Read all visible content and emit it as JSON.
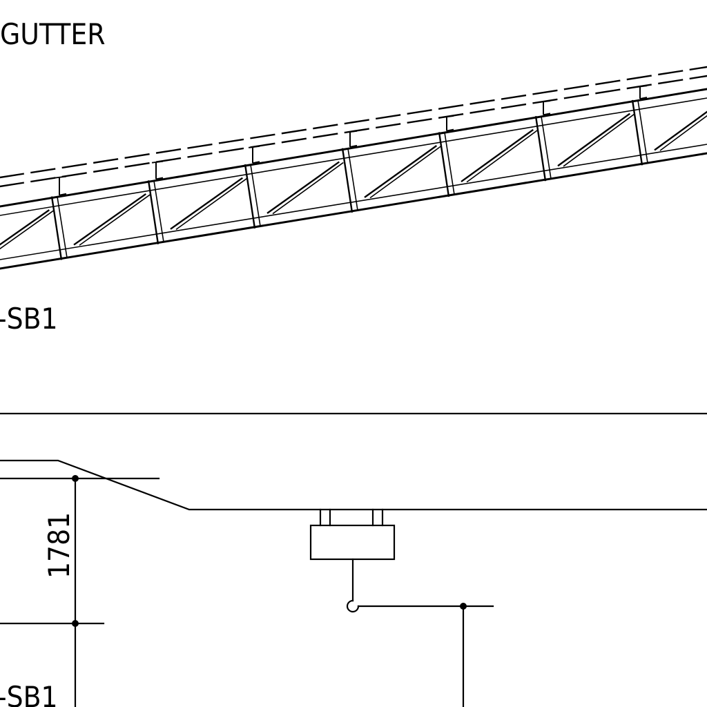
{
  "labels": {
    "gutter": "GUTTER",
    "sb1_top": "-SB1",
    "sb1_bottom": "-SB1",
    "dimension": "1781"
  },
  "colors": {
    "ink": "#000000",
    "paper": "#ffffff"
  }
}
